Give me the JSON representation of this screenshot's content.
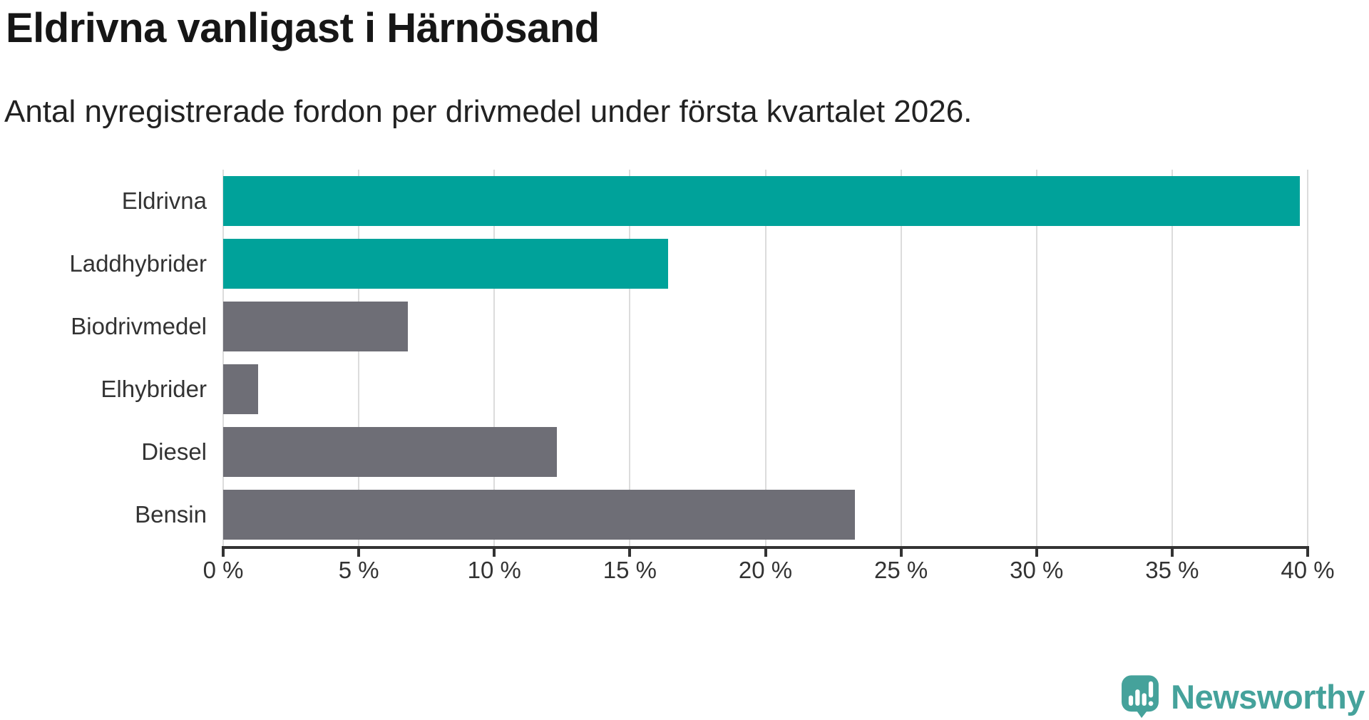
{
  "title": "Eldrivna vanligast i Härnösand",
  "subtitle": "Antal nyregistrerade fordon per drivmedel under första kvartalet 2026.",
  "chart_data": {
    "type": "bar",
    "orientation": "horizontal",
    "title": "Eldrivna vanligast i Härnösand",
    "subtitle": "Antal nyregistrerade fordon per drivmedel under första kvartalet 2026.",
    "categories": [
      "Eldrivna",
      "Laddhybrider",
      "Biodrivmedel",
      "Elhybrider",
      "Diesel",
      "Bensin"
    ],
    "values": [
      39.7,
      16.4,
      6.8,
      1.3,
      12.3,
      23.3
    ],
    "unit": "%",
    "bar_colors": [
      "#00a29a",
      "#00a29a",
      "#6e6e76",
      "#6e6e76",
      "#6e6e76",
      "#6e6e76"
    ],
    "xlim": [
      0,
      40
    ],
    "x_ticks": [
      0,
      5,
      10,
      15,
      20,
      25,
      30,
      35,
      40
    ],
    "x_tick_labels": [
      "0 %",
      "5 %",
      "10 %",
      "15 %",
      "20 %",
      "25 %",
      "30 %",
      "35 %",
      "40 %"
    ],
    "grid": "vertical-gridlines-on",
    "legend": "none"
  },
  "colors": {
    "teal": "#00a29a",
    "gray": "#6e6e76",
    "axis": "#333333",
    "gridline": "#dcdcdc",
    "brand": "#45a29b"
  },
  "footer": {
    "brand": "Newsworthy",
    "logo_icon": "speech-bubble-with-bar-chart-and-exclamation"
  }
}
